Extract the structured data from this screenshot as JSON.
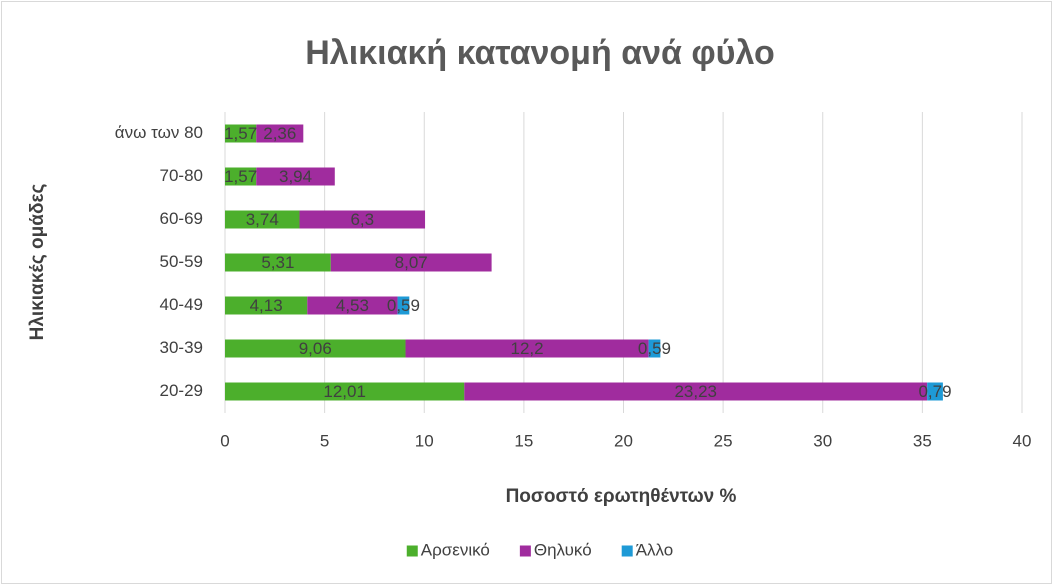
{
  "chart_data": {
    "type": "bar",
    "orientation": "horizontal",
    "stacked": true,
    "title": "Ηλικιακή κατανομή ανά φύλο",
    "xlabel": "Ποσοστό ερωτηθέντων %",
    "ylabel": "Ηλικιακές ομάδες",
    "categories": [
      "20-29",
      "30-39",
      "40-49",
      "50-59",
      "60-69",
      "70-80",
      "άνω των 80"
    ],
    "series": [
      {
        "name": "Αρσενικό",
        "color": "#4caf2c",
        "values": [
          12.01,
          9.06,
          4.13,
          5.31,
          3.74,
          1.57,
          1.57
        ],
        "value_labels": [
          "12,01",
          "9,06",
          "4,13",
          "5,31",
          "3,74",
          "1,57",
          "1,57"
        ]
      },
      {
        "name": "Θηλυκό",
        "color": "#a02c9e",
        "values": [
          23.23,
          12.2,
          4.53,
          8.07,
          6.3,
          3.94,
          2.36
        ],
        "value_labels": [
          "23,23",
          "12,2",
          "4,53",
          "8,07",
          "6,3",
          "3,94",
          "2,36"
        ]
      },
      {
        "name": "Άλλο",
        "color": "#1e9ad6",
        "values": [
          0.79,
          0.59,
          0.59,
          null,
          null,
          null,
          null
        ],
        "value_labels": [
          "0,79",
          "0,59",
          "0,59",
          null,
          null,
          null,
          null
        ]
      }
    ],
    "xlim": [
      0,
      40
    ],
    "xticks": [
      0,
      5,
      10,
      15,
      20,
      25,
      30,
      35,
      40
    ],
    "grid": true,
    "legend": "bottom"
  }
}
